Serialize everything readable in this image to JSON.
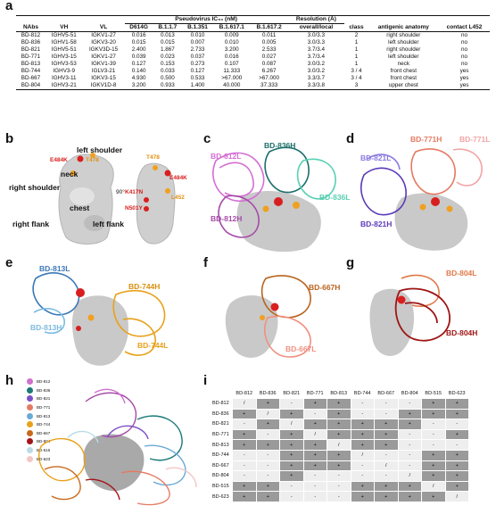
{
  "panels": {
    "a": "a",
    "b": "b",
    "c": "c",
    "d": "d",
    "e": "e",
    "f": "f",
    "g": "g",
    "h": "h",
    "i": "i"
  },
  "table": {
    "group_pseudovirus": "Pseudovirus IC₅₀ (nM)",
    "group_resolution": "Resolution (Å)",
    "headers": [
      "NAbs",
      "VH",
      "VL",
      "D614G",
      "B.1.1.7",
      "B.1.351",
      "B.1.617.1",
      "B.1.617.2",
      "overall/local",
      "class",
      "antigenic anatomy",
      "contact L452"
    ],
    "rows": [
      [
        "BD-812",
        "IGHV5-51",
        "IGKV1-27",
        "0.016",
        "0.013",
        "0.010",
        "0.009",
        "0.011",
        "3.0/3.3",
        "2",
        "right shoulder",
        "no"
      ],
      [
        "BD-836",
        "IGHV1-58",
        "IGKV3-20",
        "0.015",
        "0.015",
        "0.007",
        "0.010",
        "0.005",
        "3.0/3.3",
        "1",
        "left shoulder",
        "no"
      ],
      [
        "BD-821",
        "IGHV5-51",
        "IGKV3D-15",
        "2.400",
        "1.867",
        "2.733",
        "3.200",
        "2.533",
        "3.7/3.4",
        "1",
        "right shoulder",
        "no"
      ],
      [
        "BD-771",
        "IGHV3-15",
        "IGKV1-27",
        "0.039",
        "0.023",
        "0.037",
        "0.016",
        "0.027",
        "3.7/3.4",
        "1",
        "left shoulder",
        "no"
      ],
      [
        "BD-813",
        "IGHV3-53",
        "IGKV1-39",
        "0.127",
        "0.153",
        "0.273",
        "0.107",
        "0.087",
        "3.0/3.2",
        "1",
        "neck",
        "no"
      ],
      [
        "BD-744",
        "IGHV3-9",
        "IGLV3-21",
        "0.140",
        "0.033",
        "0.127",
        "11.333",
        "6.267",
        "3.0/3.2",
        "3 / 4",
        "front chest",
        "yes"
      ],
      [
        "BD-667",
        "IGHV3-11",
        "IGKV3-15",
        "4.930",
        "0.500",
        "0.533",
        ">67.000",
        ">67.000",
        "3.3/3.7",
        "3 / 4",
        "front chest",
        "yes"
      ],
      [
        "BD-804",
        "IGHV3-21",
        "IGKV1D-8",
        "3.200",
        "0.933",
        "1.400",
        "40.000",
        "37.333",
        "3.3/3.8",
        "3",
        "upper chest",
        "yes"
      ]
    ]
  },
  "b": {
    "left_shoulder": "left shoulder",
    "neck": "neck",
    "right_shoulder": "right shoulder",
    "chest": "chest",
    "right_flank": "right flank",
    "left_flank": "left flank",
    "e484k_left": "E484K",
    "t478_left": "T478",
    "rotation": "90°",
    "t478_right": "T478",
    "k417n": "K417N",
    "e484k_right": "E484K",
    "n501y": "N501Y",
    "l452": "L452"
  },
  "c": {
    "h836": "BD-836H",
    "l812": "BD-812L",
    "l836": "BD-836L",
    "h812": "BD-812H"
  },
  "d": {
    "l821": "BD-821L",
    "h771": "BD-771H",
    "l771": "BD-771L",
    "h821": "BD-821H"
  },
  "e": {
    "l813": "BD-813L",
    "h744": "BD-744H",
    "h813": "BD-813H",
    "l744": "BD-744L"
  },
  "f": {
    "h667": "BD-667H",
    "l667": "BD-667L"
  },
  "g": {
    "l804": "BD-804L",
    "h804": "BD-804H"
  },
  "h": {
    "legend": [
      {
        "label": "BD-812",
        "color": "#d070d0"
      },
      {
        "label": "BD-836",
        "color": "#1a7a78"
      },
      {
        "label": "BD-821",
        "color": "#7d4fc8"
      },
      {
        "label": "BD-771",
        "color": "#e57a63"
      },
      {
        "label": "BD-813",
        "color": "#6aaad6"
      },
      {
        "label": "BD-744",
        "color": "#e8a11a"
      },
      {
        "label": "BD-667",
        "color": "#c9691e"
      },
      {
        "label": "BD-804",
        "color": "#a3151a"
      },
      {
        "label": "BD-515",
        "color": "#b9dbe6"
      },
      {
        "label": "BD-623",
        "color": "#f3c6c6"
      }
    ]
  },
  "matrix": {
    "labels": [
      "BD-812",
      "BD-836",
      "BD-821",
      "BD-771",
      "BD-813",
      "BD-744",
      "BD-667",
      "BD-804",
      "BD-515",
      "BD-623"
    ],
    "cells": [
      [
        "/",
        "+",
        "-",
        "+",
        "+",
        "-",
        "-",
        "-",
        "+",
        "+"
      ],
      [
        "+",
        "/",
        "+",
        "-",
        "+",
        "-",
        "-",
        "+",
        "+",
        "+"
      ],
      [
        "-",
        "+",
        "/",
        "+",
        "+",
        "+",
        "+",
        "+",
        "-",
        "-"
      ],
      [
        "+",
        "-",
        "+",
        "/",
        "+",
        "+",
        "+",
        "-",
        "-",
        "+"
      ],
      [
        "+",
        "+",
        "+",
        "+",
        "/",
        "+",
        "+",
        "-",
        "-",
        "-"
      ],
      [
        "-",
        "-",
        "+",
        "+",
        "+",
        "/",
        "-",
        "-",
        "+",
        "+"
      ],
      [
        "-",
        "-",
        "+",
        "+",
        "+",
        "-",
        "/",
        "-",
        "+",
        "+"
      ],
      [
        "-",
        "-",
        "+",
        "-",
        "-",
        "-",
        "-",
        "/",
        "+",
        "+"
      ],
      [
        "+",
        "+",
        "-",
        "-",
        "-",
        "+",
        "+",
        "+",
        "/",
        "+"
      ],
      [
        "+",
        "+",
        "-",
        "-",
        "-",
        "+",
        "+",
        "+",
        "+",
        "/"
      ]
    ]
  },
  "colors": {
    "dark_cell": "#9a9a9a",
    "light_cell": "#eeeeee",
    "surface": "#c8c8c8",
    "orange": "#f0a020",
    "red": "#d81f1f"
  }
}
